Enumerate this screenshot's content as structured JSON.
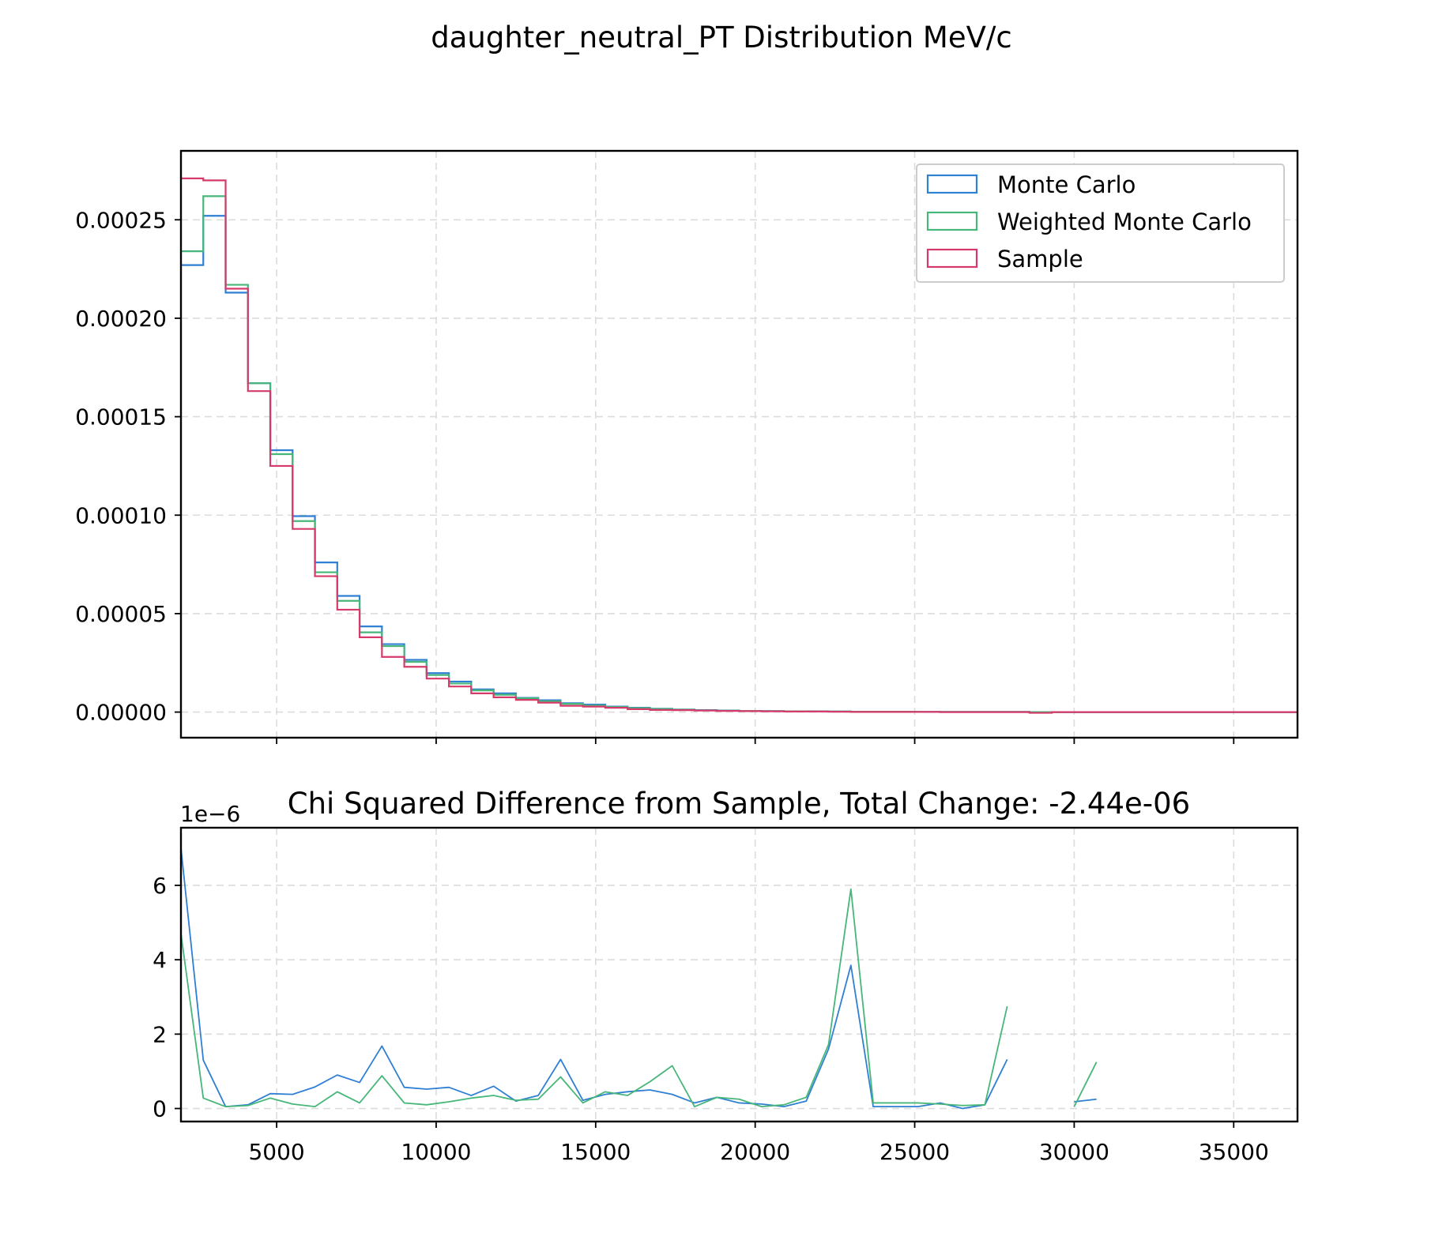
{
  "figure": {
    "suptitle": "daughter_neutral_PT Distribution MeV/c"
  },
  "colors": {
    "monte_carlo": "#2f7fd3",
    "weighted_monte_carlo": "#47b679",
    "sample": "#d63a6a"
  },
  "chart_data": [
    {
      "type": "histogram",
      "title": "",
      "xlabel": "",
      "ylabel": "",
      "xlim": [
        2000,
        37000
      ],
      "ylim": [
        -1.3e-05,
        0.000285
      ],
      "grid": true,
      "legend_position": "top-right",
      "x_tick_labels_visible": false,
      "yticks": [
        0.0,
        5e-05,
        0.0001,
        0.00015,
        0.0002,
        0.00025
      ],
      "ytick_labels": [
        "0.00000",
        "0.00005",
        "0.00010",
        "0.00015",
        "0.00020",
        "0.00025"
      ],
      "xticks": [
        5000,
        10000,
        15000,
        20000,
        25000,
        30000,
        35000
      ],
      "bin_edges": [
        2000,
        2700,
        3400,
        4100,
        4800,
        5500,
        6200,
        6900,
        7600,
        8300,
        9000,
        9700,
        10400,
        11100,
        11800,
        12500,
        13200,
        13900,
        14600,
        15300,
        16000,
        16700,
        17400,
        18100,
        18800,
        19500,
        20200,
        20900,
        21600,
        22300,
        23000,
        23700,
        24400,
        25100,
        25800,
        26500,
        27200,
        27900,
        28600,
        29300,
        30000,
        30700,
        31400,
        32100,
        32800,
        33500,
        34200,
        34900,
        35600,
        36300,
        37000
      ],
      "series": [
        {
          "name": "Monte Carlo",
          "color_key": "monte_carlo",
          "values": [
            0.000227,
            0.000252,
            0.000213,
            0.000167,
            0.000133,
            9.95e-05,
            7.6e-05,
            5.9e-05,
            4.35e-05,
            3.45e-05,
            2.65e-05,
            1.98e-05,
            1.55e-05,
            1.15e-05,
            9.5e-06,
            7.2e-06,
            6e-06,
            4.5e-06,
            3.8e-06,
            2.8e-06,
            2.2e-06,
            1.7e-06,
            1.3e-06,
            1e-06,
            8e-07,
            6e-07,
            5e-07,
            4e-07,
            4e-07,
            3e-07,
            2e-07,
            2e-07,
            2e-07,
            1e-07,
            1e-07,
            1e-07,
            1e-07,
            1e-07,
            0,
            0,
            0,
            0,
            0,
            0,
            0,
            0,
            0,
            0,
            0,
            0
          ]
        },
        {
          "name": "Weighted Monte Carlo",
          "color_key": "weighted_monte_carlo",
          "values": [
            0.000234,
            0.000262,
            0.000217,
            0.000167,
            0.000131,
            9.7e-05,
            7.1e-05,
            5.65e-05,
            4.05e-05,
            3.35e-05,
            2.55e-05,
            1.88e-05,
            1.45e-05,
            1.1e-05,
            8.8e-06,
            7e-06,
            5.5e-06,
            4.2e-06,
            3.3e-06,
            2.6e-06,
            2e-06,
            1.6e-06,
            1.2e-06,
            9e-07,
            7e-07,
            6e-07,
            5e-07,
            4e-07,
            3e-07,
            3e-07,
            2e-07,
            2e-07,
            2e-07,
            1e-07,
            1e-07,
            1e-07,
            1e-07,
            1e-07,
            0,
            0,
            0,
            0,
            0,
            0,
            0,
            0,
            0,
            0,
            0,
            0
          ]
        },
        {
          "name": "Sample",
          "color_key": "sample",
          "values": [
            0.000271,
            0.00027,
            0.000215,
            0.000163,
            0.000125,
            9.3e-05,
            6.9e-05,
            5.2e-05,
            3.8e-05,
            2.8e-05,
            2.3e-05,
            1.7e-05,
            1.3e-05,
            9.5e-06,
            7.5e-06,
            6.2e-06,
            4.8e-06,
            3.2e-06,
            2.8e-06,
            2.2e-06,
            1.5e-06,
            1.1e-06,
            1e-06,
            8e-07,
            6e-07,
            5e-07,
            4e-07,
            3e-07,
            3e-07,
            2e-07,
            1e-07,
            1e-07,
            1e-07,
            1e-07,
            0,
            0,
            0,
            0,
            -4e-07,
            0,
            0,
            0,
            0,
            0,
            0,
            0,
            0,
            0,
            0,
            0
          ]
        }
      ]
    },
    {
      "type": "line",
      "title": "Chi Squared Difference from Sample, Total Change: -2.44e-06",
      "xlabel": "",
      "ylabel": "",
      "offset_text": "1e−6",
      "xlim": [
        2000,
        37000
      ],
      "ylim": [
        -0.35,
        7.55
      ],
      "grid": true,
      "xticks": [
        5000,
        10000,
        15000,
        20000,
        25000,
        30000,
        35000
      ],
      "xtick_labels": [
        "5000",
        "10000",
        "15000",
        "20000",
        "25000",
        "30000",
        "35000"
      ],
      "yticks": [
        0,
        2,
        4,
        6
      ],
      "ytick_labels": [
        "0",
        "2",
        "4",
        "6"
      ],
      "x": [
        2000,
        2700,
        3400,
        4100,
        4800,
        5500,
        6200,
        6900,
        7600,
        8300,
        9000,
        9700,
        10400,
        11100,
        11800,
        12500,
        13200,
        13900,
        14600,
        15300,
        16000,
        16700,
        17400,
        18100,
        18800,
        19500,
        20200,
        20900,
        21600,
        22300,
        23000,
        23700,
        24400,
        25100,
        25800,
        26500,
        27200,
        27900,
        28600,
        29300,
        30000,
        30700
      ],
      "series": [
        {
          "name": "Monte Carlo",
          "color_key": "monte_carlo",
          "values": [
            7.0,
            1.3,
            0.05,
            0.1,
            0.4,
            0.38,
            0.58,
            0.9,
            0.7,
            1.68,
            0.57,
            0.52,
            0.57,
            0.35,
            0.6,
            0.2,
            0.35,
            1.32,
            0.22,
            0.38,
            0.45,
            0.5,
            0.38,
            0.15,
            0.3,
            0.15,
            0.12,
            0.05,
            0.2,
            1.6,
            3.85,
            0.05,
            0.05,
            0.05,
            0.15,
            0.0,
            0.1,
            1.32,
            null,
            null,
            0.18,
            0.25
          ]
        },
        {
          "name": "Weighted Monte Carlo",
          "color_key": "weighted_monte_carlo",
          "values": [
            4.7,
            0.28,
            0.05,
            0.08,
            0.28,
            0.12,
            0.05,
            0.45,
            0.15,
            0.88,
            0.15,
            0.1,
            0.18,
            0.28,
            0.35,
            0.22,
            0.25,
            0.85,
            0.15,
            0.45,
            0.35,
            0.72,
            1.15,
            0.05,
            0.3,
            0.25,
            0.05,
            0.1,
            0.3,
            1.72,
            5.9,
            0.15,
            0.15,
            0.15,
            0.12,
            0.08,
            0.1,
            2.75,
            null,
            null,
            0.05,
            1.25
          ]
        }
      ]
    }
  ]
}
